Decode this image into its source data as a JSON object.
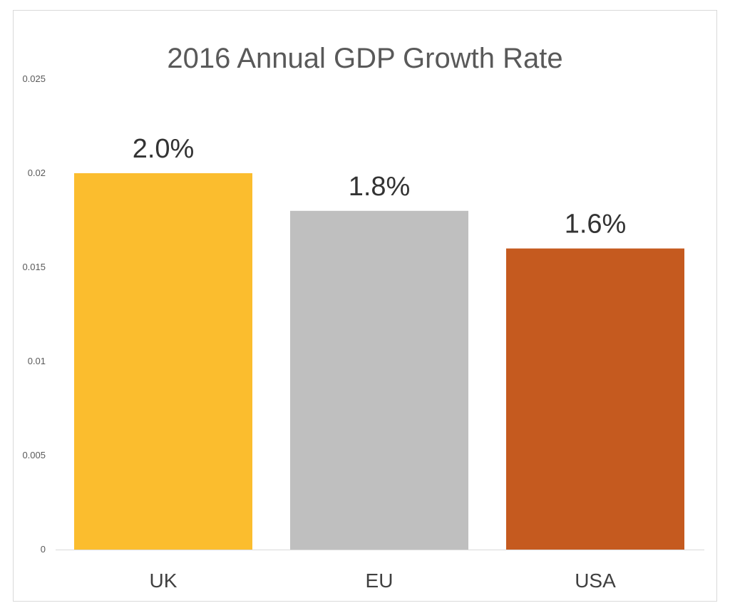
{
  "chart_data": {
    "type": "bar",
    "title": "2016 Annual GDP Growth Rate",
    "categories": [
      "UK",
      "EU",
      "USA"
    ],
    "values": [
      0.02,
      0.018,
      0.016
    ],
    "data_labels": [
      "2.0%",
      "1.8%",
      "1.6%"
    ],
    "colors": [
      "#FBBD2E",
      "#BFBFBF",
      "#C55A1F"
    ],
    "yticks": [
      "0",
      "0.005",
      "0.01",
      "0.015",
      "0.02",
      "0.025"
    ],
    "ylim": [
      0,
      0.025
    ],
    "grid": false,
    "legend": "none",
    "xlabel": "",
    "ylabel": ""
  }
}
